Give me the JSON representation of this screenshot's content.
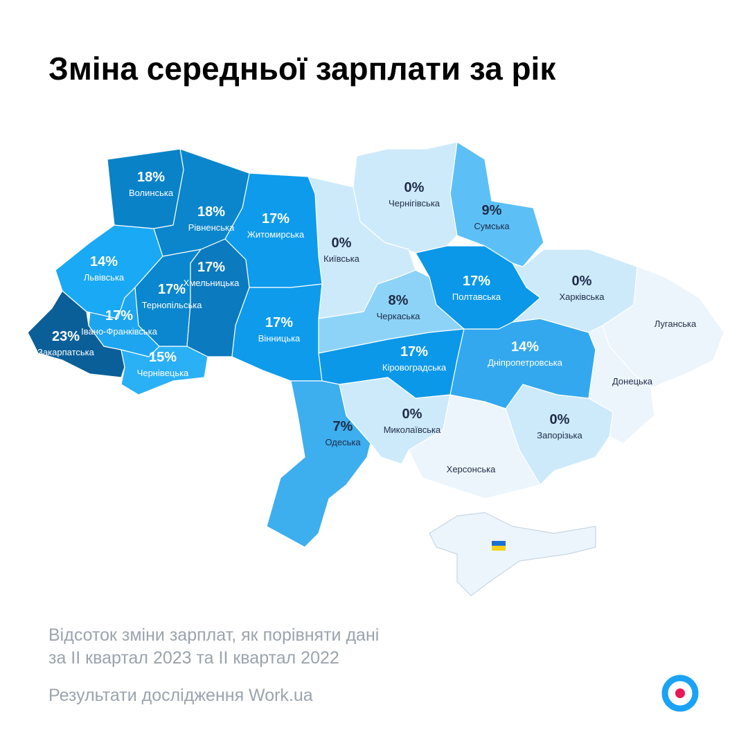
{
  "chart_data": {
    "type": "map",
    "title": "Зміна середньої зарплати за рік",
    "categories": [
      "Волинська",
      "Рівненська",
      "Житомирська",
      "Київська",
      "Чернігівська",
      "Сумська",
      "Полтавська",
      "Харківська",
      "Луганська",
      "Донецька",
      "Дніпропетровська",
      "Запорізька",
      "Херсонська",
      "Миколаївська",
      "Одеська",
      "Кіровоградська",
      "Черкаська",
      "Вінницька",
      "Хмельницька",
      "Тернопільська",
      "Львівська",
      "Івано-Франківська",
      "Чернівецька",
      "Закарпатська"
    ],
    "values": [
      18,
      18,
      17,
      0,
      0,
      9,
      17,
      0,
      null,
      null,
      14,
      0,
      null,
      0,
      7,
      17,
      8,
      17,
      17,
      17,
      14,
      17,
      15,
      23
    ],
    "value_labels": [
      "18%",
      "18%",
      "17%",
      "0%",
      "0%",
      "9%",
      "17%",
      "0%",
      null,
      null,
      "14%",
      "0%",
      null,
      "0%",
      "7%",
      "17%",
      "8%",
      "17%",
      "17%",
      "17%",
      "14%",
      "17%",
      "15%",
      "23%"
    ],
    "colors": [
      "#0a82c8",
      "#0b86cc",
      "#0e9bec",
      "#cdeafb",
      "#cdeafb",
      "#5cc0f7",
      "#0c98e8",
      "#cdeafb",
      "#ecf5fc",
      "#ecf5fc",
      "#33a8ee",
      "#cdeafb",
      "#ecf5fc",
      "#cdeafb",
      "#3daeee",
      "#0c98e8",
      "#8dd3f8",
      "#0e9bec",
      "#0b7abf",
      "#0a87cf",
      "#1aa9f5",
      "#1da5f0",
      "#2ab0f5",
      "#0b5f98"
    ],
    "subtitle": [
      "Відсоток зміни зарплат, як порівняти дані",
      "за II квартал 2023 та II квартал 2022"
    ],
    "source": "Результати дослідження Work.ua"
  }
}
